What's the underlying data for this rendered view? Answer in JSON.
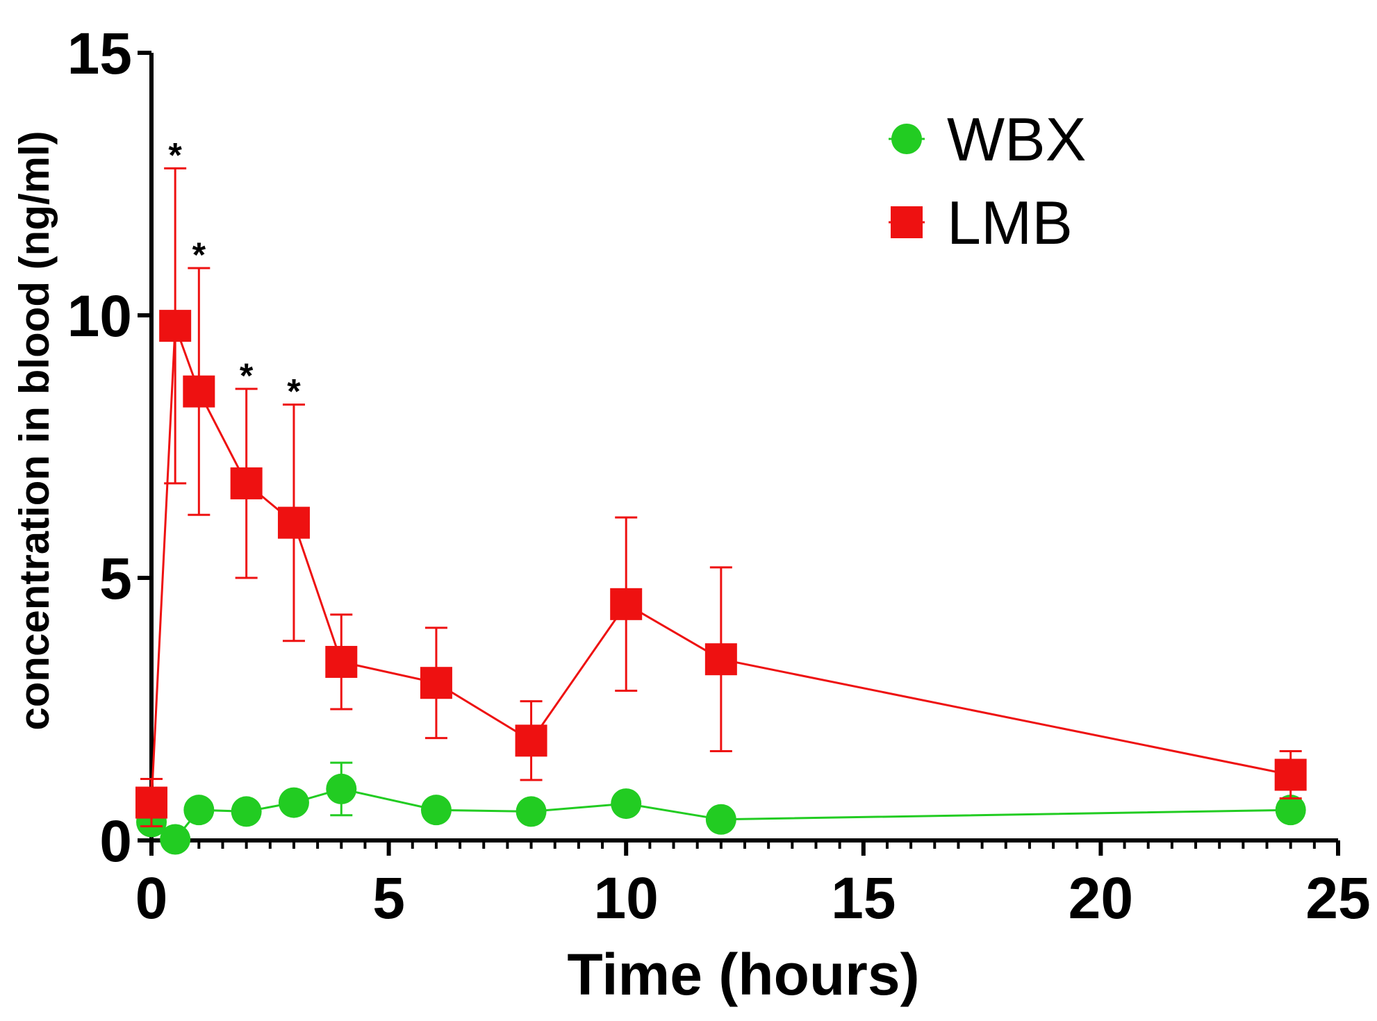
{
  "chart_data": {
    "type": "line",
    "title": "",
    "xlabel": "Time (hours)",
    "ylabel": "concentration in blood (ng/ml)",
    "xlim": [
      0,
      25
    ],
    "ylim": [
      0,
      15
    ],
    "x_ticks": [
      0,
      5,
      10,
      15,
      20,
      25
    ],
    "y_ticks": [
      0,
      5,
      10,
      15
    ],
    "x_minor_step": 0.5,
    "grid": false,
    "legend_position": "top-right",
    "series": [
      {
        "name": "WBX",
        "color": "#22cc22",
        "marker": "circle",
        "points": [
          {
            "x": 0,
            "y": 0.35,
            "err": 0
          },
          {
            "x": 0.5,
            "y": 0.02,
            "err": 0
          },
          {
            "x": 1,
            "y": 0.58,
            "err": 0
          },
          {
            "x": 2,
            "y": 0.55,
            "err": 0
          },
          {
            "x": 3,
            "y": 0.72,
            "err": 0
          },
          {
            "x": 4,
            "y": 0.98,
            "err": 0.5
          },
          {
            "x": 6,
            "y": 0.58,
            "err": 0
          },
          {
            "x": 8,
            "y": 0.55,
            "err": 0
          },
          {
            "x": 10,
            "y": 0.7,
            "err": 0
          },
          {
            "x": 12,
            "y": 0.4,
            "err": 0
          },
          {
            "x": 24,
            "y": 0.58,
            "err": 0
          }
        ]
      },
      {
        "name": "LMB",
        "color": "#ee1111",
        "marker": "square",
        "points": [
          {
            "x": 0,
            "y": 0.72,
            "err": 0.45
          },
          {
            "x": 0.5,
            "y": 9.8,
            "err": 3.0
          },
          {
            "x": 1,
            "y": 8.55,
            "err": 2.35
          },
          {
            "x": 2,
            "y": 6.8,
            "err": 1.8
          },
          {
            "x": 3,
            "y": 6.05,
            "err": 2.25
          },
          {
            "x": 4,
            "y": 3.4,
            "err": 0.9
          },
          {
            "x": 6,
            "y": 3.0,
            "err": 1.05
          },
          {
            "x": 8,
            "y": 1.9,
            "err": 0.75
          },
          {
            "x": 10,
            "y": 4.5,
            "err": 1.65
          },
          {
            "x": 12,
            "y": 3.45,
            "err": 1.75
          },
          {
            "x": 24,
            "y": 1.25,
            "err": 0.45
          }
        ]
      }
    ],
    "annotations": [
      {
        "text": "*",
        "x": 0.5,
        "y": 12.8
      },
      {
        "text": "*",
        "x": 1,
        "y": 10.9
      },
      {
        "text": "*",
        "x": 2,
        "y": 8.6
      },
      {
        "text": "*",
        "x": 3,
        "y": 8.3
      }
    ]
  }
}
